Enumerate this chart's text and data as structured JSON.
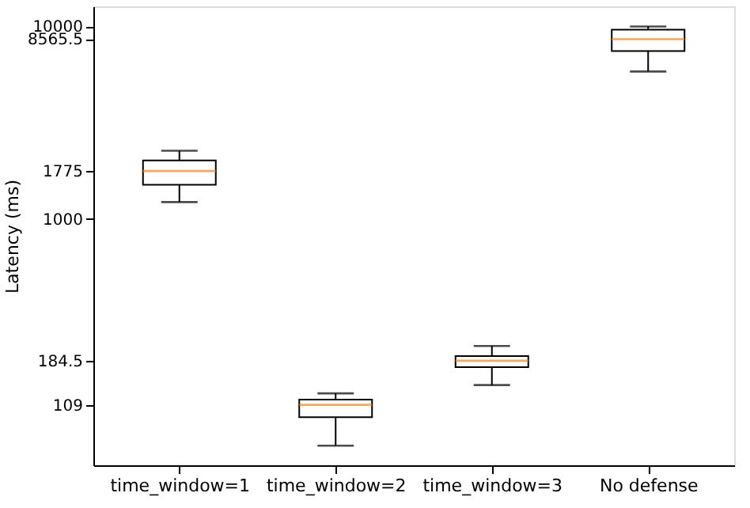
{
  "chart_data": {
    "type": "box",
    "ylabel": "Latency (ms)",
    "categories": [
      "time_window=1",
      "time_window=2",
      "time_window=3",
      "No defense"
    ],
    "boxes": [
      {
        "low": 1226,
        "q1": 1507,
        "median": 1775,
        "q3": 2014,
        "high": 2260
      },
      {
        "low": 67,
        "q1": 94,
        "median": 109,
        "q3": 116,
        "high": 125
      },
      {
        "low": 138,
        "q1": 171,
        "median": 184.5,
        "q3": 195,
        "high": 220
      },
      {
        "low": 5820,
        "q1": 7430,
        "median": 8565.5,
        "q3": 9600,
        "high": 9960
      }
    ],
    "log": true,
    "ylim": [
      53,
      12670
    ],
    "yticks": [
      109,
      184.5,
      1000,
      1775,
      8565.5,
      10000
    ],
    "grid": false
  }
}
